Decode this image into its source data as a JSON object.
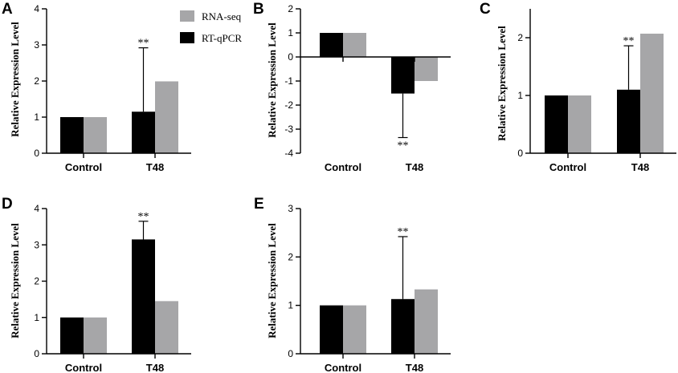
{
  "colors": {
    "rna_seq": "#a6a6a8",
    "rt_qpcr": "#000000",
    "axis": "#000000"
  },
  "legend": {
    "items": [
      {
        "label": "RNA-seq",
        "color": "#a6a6a8"
      },
      {
        "label": "RT-qPCR",
        "color": "#000000"
      }
    ]
  },
  "chart_data": [
    {
      "panel": "A",
      "type": "bar",
      "ylabel": "Relative Expression Level",
      "categories": [
        "Control",
        "T48"
      ],
      "ylim": [
        0,
        4
      ],
      "yticks": [
        "0",
        "1",
        "2",
        "3",
        "4"
      ],
      "series": [
        {
          "name": "RT-qPCR",
          "values": [
            1,
            1.15
          ],
          "error": [
            0,
            1.77
          ]
        },
        {
          "name": "RNA-seq",
          "values": [
            1,
            1.99
          ]
        }
      ],
      "annotations": [
        {
          "category": "T48",
          "text": "**",
          "position": "above"
        }
      ]
    },
    {
      "panel": "B",
      "type": "bar",
      "ylabel": "Relative Expression Level",
      "categories": [
        "Control",
        "T48"
      ],
      "ylim": [
        -4,
        2
      ],
      "yticks": [
        "-4",
        "-3",
        "-2",
        "-1",
        "0",
        "1",
        "2"
      ],
      "series": [
        {
          "name": "RT-qPCR",
          "values": [
            1,
            -1.52
          ],
          "error": [
            0,
            1.83
          ]
        },
        {
          "name": "RNA-seq",
          "values": [
            1,
            -1.0
          ]
        }
      ],
      "annotations": [
        {
          "category": "T48",
          "text": "**",
          "position": "below"
        }
      ]
    },
    {
      "panel": "C",
      "type": "bar",
      "ylabel": "Relative Expression Level",
      "categories": [
        "Control",
        "T48"
      ],
      "ylim": [
        0,
        2.5
      ],
      "yticks": [
        "0",
        "1",
        "2"
      ],
      "series": [
        {
          "name": "RT-qPCR",
          "values": [
            1,
            1.1
          ],
          "error": [
            0,
            0.76
          ]
        },
        {
          "name": "RNA-seq",
          "values": [
            1,
            2.07
          ]
        }
      ],
      "annotations": [
        {
          "category": "T48",
          "text": "**",
          "position": "above"
        }
      ]
    },
    {
      "panel": "D",
      "type": "bar",
      "ylabel": "Relative Expression Level",
      "categories": [
        "Control",
        "T48"
      ],
      "ylim": [
        0,
        4
      ],
      "yticks": [
        "0",
        "1",
        "2",
        "3",
        "4"
      ],
      "series": [
        {
          "name": "RT-qPCR",
          "values": [
            1,
            3.15
          ],
          "error": [
            0,
            0.5
          ]
        },
        {
          "name": "RNA-seq",
          "values": [
            1,
            1.45
          ]
        }
      ],
      "annotations": [
        {
          "category": "T48",
          "text": "**",
          "position": "above"
        }
      ]
    },
    {
      "panel": "E",
      "type": "bar",
      "ylabel": "Relative Expression Level",
      "categories": [
        "Control",
        "T48"
      ],
      "ylim": [
        0,
        3
      ],
      "yticks": [
        "0",
        "1",
        "2",
        "3"
      ],
      "series": [
        {
          "name": "RT-qPCR",
          "values": [
            1,
            1.13
          ],
          "error": [
            0,
            1.29
          ]
        },
        {
          "name": "RNA-seq",
          "values": [
            1,
            1.33
          ]
        }
      ],
      "annotations": [
        {
          "category": "T48",
          "text": "**",
          "position": "above"
        }
      ]
    }
  ]
}
